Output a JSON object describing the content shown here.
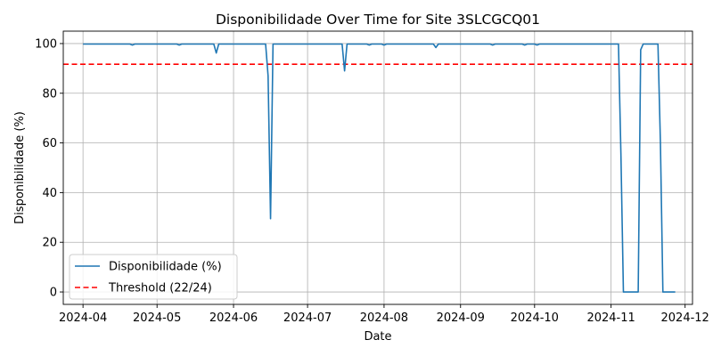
{
  "chart_data": {
    "type": "line",
    "title": "Disponibilidade Over Time for Site 3SLCGCQ01",
    "xlabel": "Date",
    "ylabel": "Disponibilidade (%)",
    "xlim": [
      "2024-03-24",
      "2024-12-04"
    ],
    "ylim": [
      -5,
      105
    ],
    "grid": true,
    "legend_placement": "lower-left",
    "x_ticks": [
      "2024-04",
      "2024-05",
      "2024-06",
      "2024-07",
      "2024-08",
      "2024-09",
      "2024-10",
      "2024-11",
      "2024-12"
    ],
    "y_ticks": [
      0,
      20,
      40,
      60,
      80,
      100
    ],
    "series": [
      {
        "name": "Disponibilidade (%)",
        "color": "#1f77b4",
        "x": [
          "2024-04-01",
          "2024-04-20",
          "2024-04-21",
          "2024-04-22",
          "2024-05-09",
          "2024-05-10",
          "2024-05-11",
          "2024-05-24",
          "2024-05-25",
          "2024-05-26",
          "2024-06-14",
          "2024-06-15",
          "2024-06-16",
          "2024-06-17",
          "2024-07-15",
          "2024-07-16",
          "2024-07-17",
          "2024-07-25",
          "2024-07-26",
          "2024-07-27",
          "2024-07-31",
          "2024-08-01",
          "2024-08-02",
          "2024-08-21",
          "2024-08-22",
          "2024-08-23",
          "2024-09-13",
          "2024-09-14",
          "2024-09-15",
          "2024-09-26",
          "2024-09-27",
          "2024-09-28",
          "2024-10-01",
          "2024-10-02",
          "2024-10-03",
          "2024-11-04",
          "2024-11-05",
          "2024-11-06",
          "2024-11-12",
          "2024-11-13",
          "2024-11-14",
          "2024-11-20",
          "2024-11-21",
          "2024-11-22",
          "2024-11-23",
          "2024-11-27"
        ],
        "y": [
          99.8,
          99.8,
          99.4,
          99.8,
          99.8,
          99.4,
          99.8,
          99.8,
          96.2,
          99.8,
          99.8,
          87,
          29.5,
          99.8,
          99.8,
          89,
          99.8,
          99.8,
          99.4,
          99.8,
          99.8,
          99.4,
          99.8,
          99.8,
          98.4,
          99.8,
          99.8,
          99.4,
          99.8,
          99.8,
          99.4,
          99.8,
          99.8,
          99.4,
          99.8,
          99.8,
          55,
          0,
          0,
          97.5,
          99.8,
          99.8,
          60,
          0,
          0,
          0
        ]
      },
      {
        "name": "Threshold (22/24)",
        "color": "#ff0000",
        "style": "dashed",
        "value": 91.67
      }
    ]
  }
}
